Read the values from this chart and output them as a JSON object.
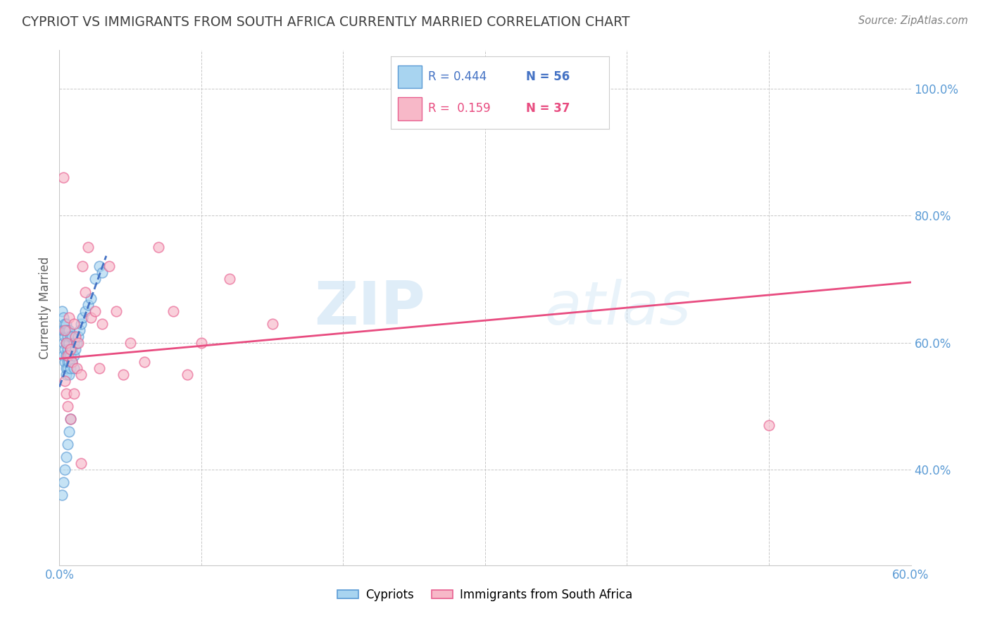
{
  "title": "CYPRIOT VS IMMIGRANTS FROM SOUTH AFRICA CURRENTLY MARRIED CORRELATION CHART",
  "source": "Source: ZipAtlas.com",
  "ylabel": "Currently Married",
  "watermark_zip": "ZIP",
  "watermark_atlas": "atlas",
  "xlim": [
    0.0,
    0.6
  ],
  "ylim": [
    0.25,
    1.06
  ],
  "xtick_vals": [
    0.0,
    0.1,
    0.2,
    0.3,
    0.4,
    0.5,
    0.6
  ],
  "xtick_labels": [
    "0.0%",
    "",
    "",
    "",
    "",
    "",
    "60.0%"
  ],
  "ytick_vals": [
    0.4,
    0.6,
    0.8,
    1.0
  ],
  "ytick_labels": [
    "40.0%",
    "60.0%",
    "80.0%",
    "100.0%"
  ],
  "legend_r1": "R = 0.444",
  "legend_n1": "N = 56",
  "legend_r2": "R =  0.159",
  "legend_n2": "N = 37",
  "blue_face": "#a8d4f0",
  "blue_edge": "#5b9bd5",
  "pink_face": "#f7b8c8",
  "pink_edge": "#e86090",
  "trend_blue_color": "#4472c4",
  "trend_pink_color": "#e84c80",
  "title_color": "#404040",
  "axis_tick_color": "#5b9bd5",
  "grid_color": "#c8c8c8",
  "source_color": "#808080",
  "cypriot_x": [
    0.002,
    0.002,
    0.003,
    0.003,
    0.003,
    0.003,
    0.004,
    0.004,
    0.004,
    0.004,
    0.005,
    0.005,
    0.005,
    0.005,
    0.005,
    0.005,
    0.006,
    0.006,
    0.006,
    0.006,
    0.006,
    0.006,
    0.007,
    0.007,
    0.007,
    0.007,
    0.007,
    0.008,
    0.008,
    0.008,
    0.008,
    0.009,
    0.009,
    0.009,
    0.01,
    0.01,
    0.01,
    0.011,
    0.012,
    0.013,
    0.014,
    0.015,
    0.016,
    0.018,
    0.02,
    0.022,
    0.025,
    0.028,
    0.03,
    0.002,
    0.003,
    0.004,
    0.005,
    0.006,
    0.007,
    0.008
  ],
  "cypriot_y": [
    0.62,
    0.65,
    0.6,
    0.62,
    0.58,
    0.64,
    0.61,
    0.63,
    0.59,
    0.57,
    0.6,
    0.62,
    0.58,
    0.55,
    0.56,
    0.63,
    0.6,
    0.62,
    0.57,
    0.59,
    0.61,
    0.56,
    0.58,
    0.6,
    0.62,
    0.55,
    0.57,
    0.59,
    0.61,
    0.56,
    0.58,
    0.57,
    0.59,
    0.61,
    0.58,
    0.6,
    0.56,
    0.59,
    0.6,
    0.61,
    0.62,
    0.63,
    0.64,
    0.65,
    0.66,
    0.67,
    0.7,
    0.72,
    0.71,
    0.36,
    0.38,
    0.4,
    0.42,
    0.44,
    0.46,
    0.48
  ],
  "sa_x": [
    0.004,
    0.005,
    0.006,
    0.007,
    0.008,
    0.009,
    0.01,
    0.011,
    0.012,
    0.013,
    0.015,
    0.016,
    0.018,
    0.02,
    0.022,
    0.025,
    0.028,
    0.03,
    0.035,
    0.04,
    0.045,
    0.05,
    0.06,
    0.07,
    0.08,
    0.09,
    0.1,
    0.12,
    0.15,
    0.003,
    0.004,
    0.005,
    0.006,
    0.008,
    0.01,
    0.015,
    0.5
  ],
  "sa_y": [
    0.62,
    0.6,
    0.58,
    0.64,
    0.59,
    0.57,
    0.63,
    0.61,
    0.56,
    0.6,
    0.55,
    0.72,
    0.68,
    0.75,
    0.64,
    0.65,
    0.56,
    0.63,
    0.72,
    0.65,
    0.55,
    0.6,
    0.57,
    0.75,
    0.65,
    0.55,
    0.6,
    0.7,
    0.63,
    0.86,
    0.54,
    0.52,
    0.5,
    0.48,
    0.52,
    0.41,
    0.47
  ]
}
